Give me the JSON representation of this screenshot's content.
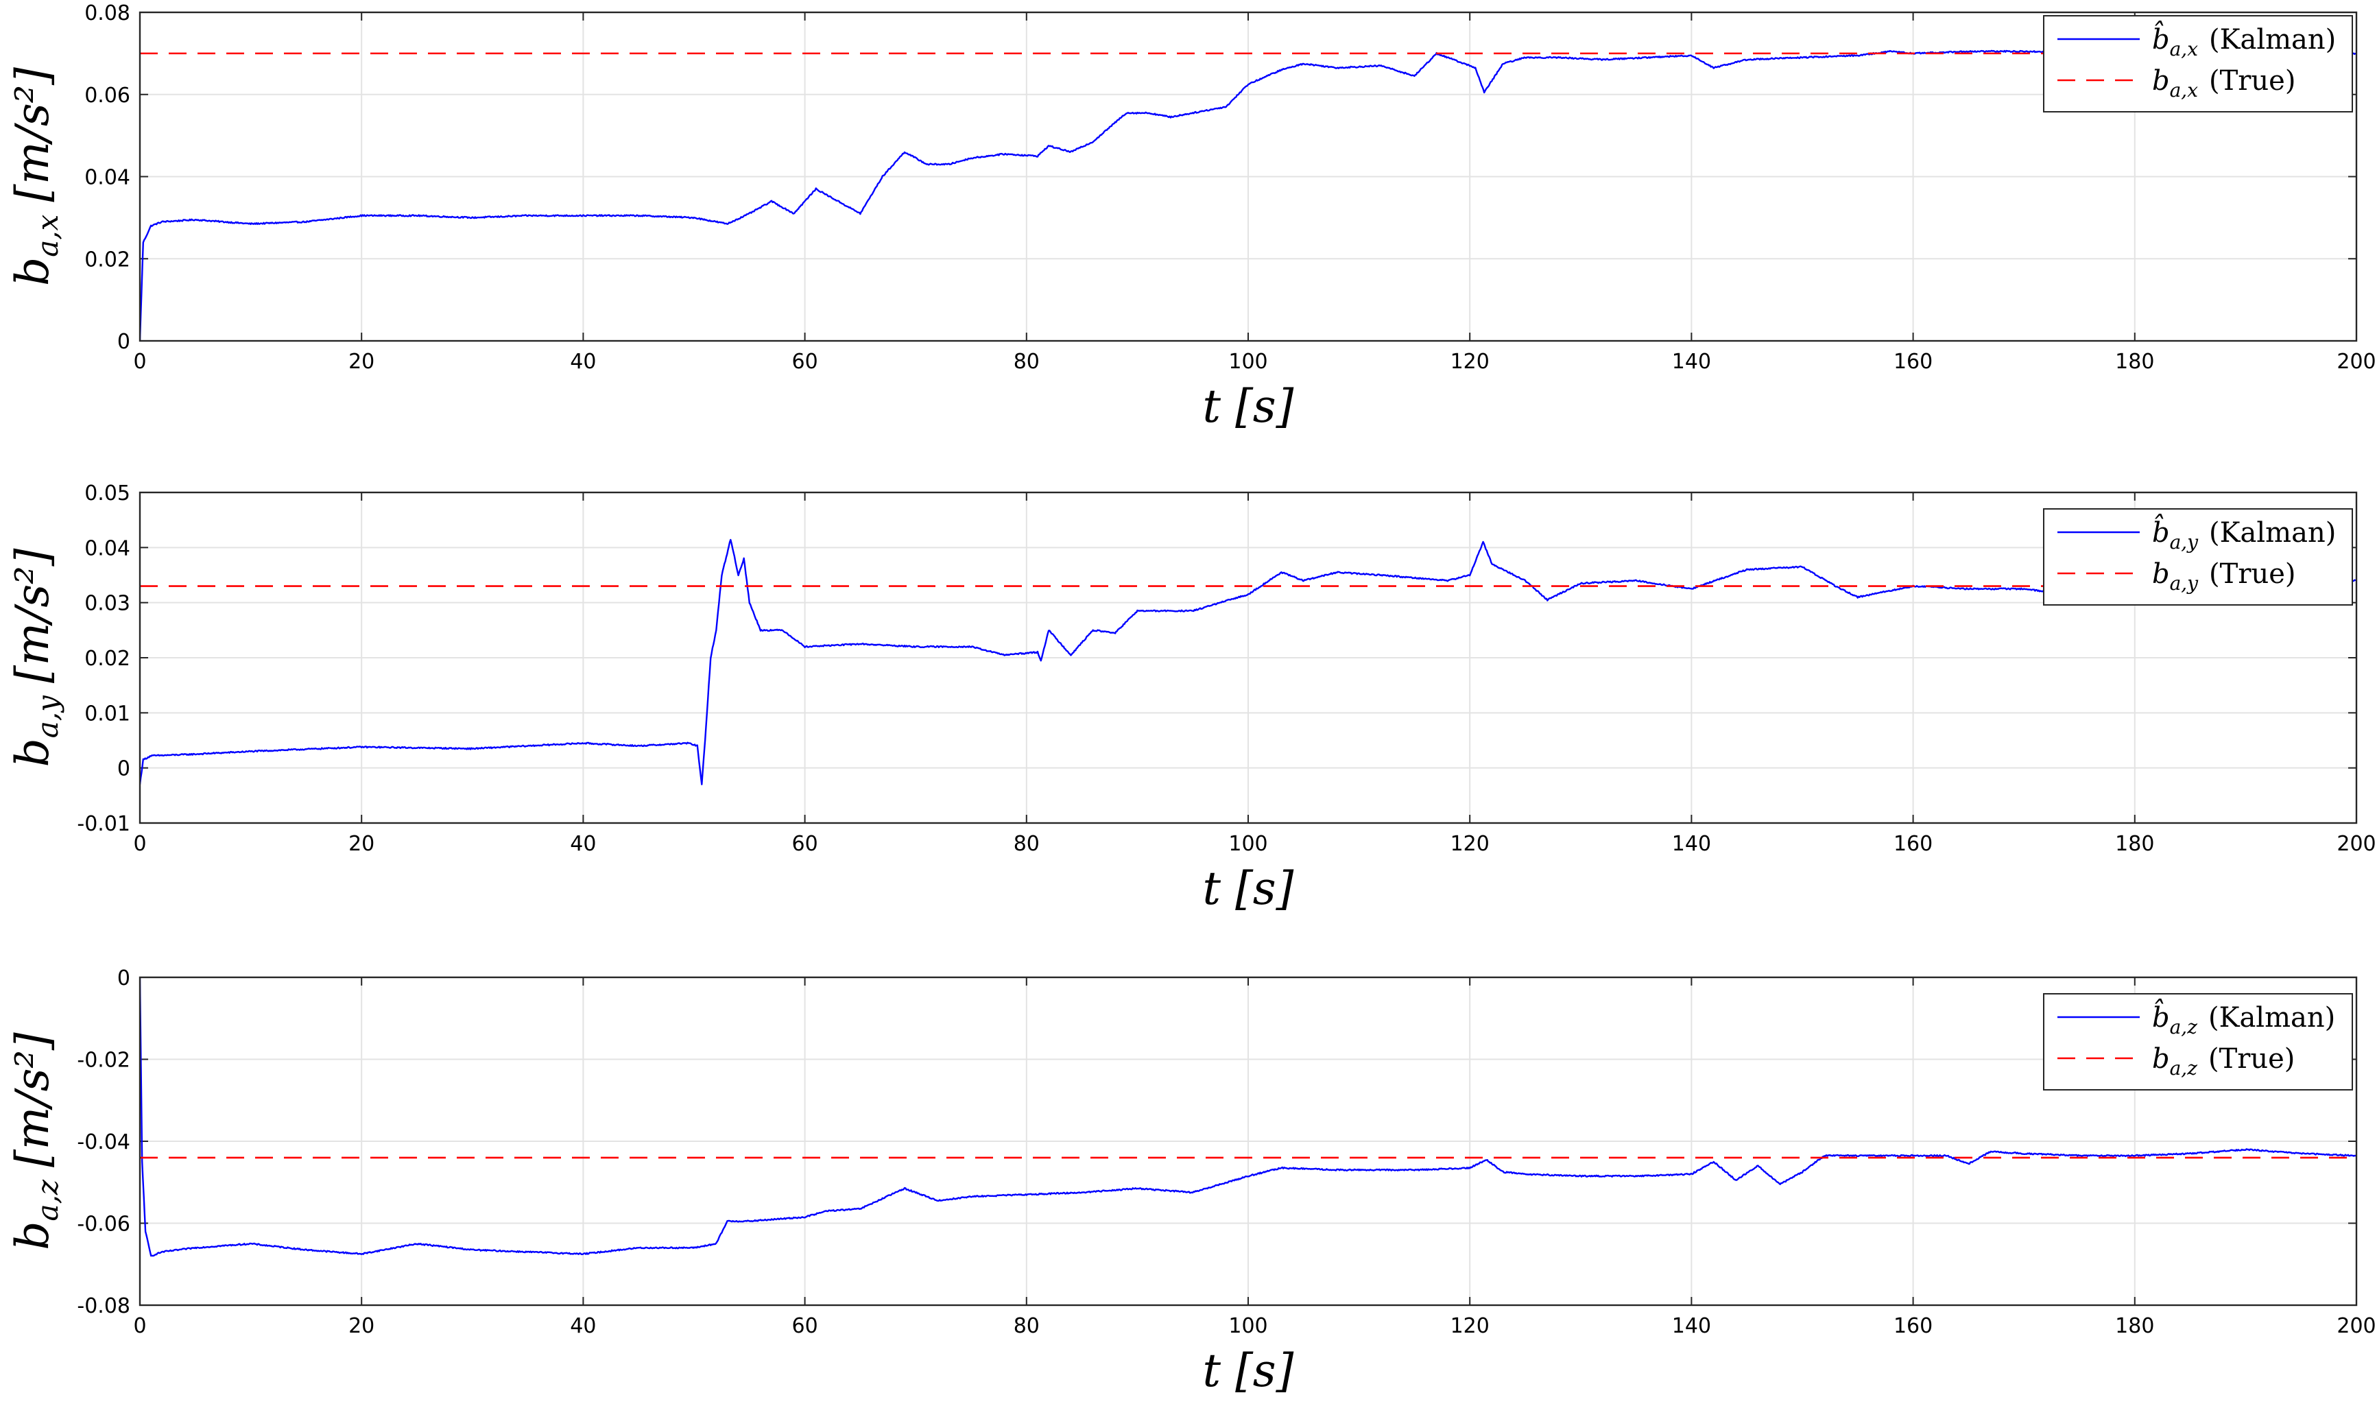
{
  "chart_data": [
    {
      "type": "line",
      "xlim": [
        0,
        200
      ],
      "ylim": [
        0,
        0.08
      ],
      "xticks": [
        "0",
        "20",
        "40",
        "60",
        "80",
        "100",
        "120",
        "140",
        "160",
        "180",
        "200"
      ],
      "yticks": [
        "0",
        "0.02",
        "0.04",
        "0.06",
        "0.08"
      ],
      "xlabel": "t [s]",
      "ylabel": "b_{a,x} [m/s^2]",
      "ylabel_sym": "b",
      "ylabel_sub": "a,x",
      "ylabel_unit": "[m/s²]",
      "grid": true,
      "legend_position": "top-right",
      "series": [
        {
          "name": "b̂_{a,x} (Kalman)",
          "legend_sym": "b̂",
          "legend_sub": "a,x",
          "legend_suffix": "(Kalman)",
          "color": "#0000ff",
          "style": "solid",
          "x": [
            0,
            0.3,
            1,
            2,
            5,
            10,
            15,
            20,
            25,
            30,
            35,
            40,
            45,
            50,
            53,
            55,
            57,
            59,
            61,
            63,
            65,
            67,
            69,
            71,
            73,
            75,
            78,
            81,
            82,
            84,
            86,
            89,
            91,
            93,
            95,
            98,
            100,
            103,
            105,
            108,
            112,
            115,
            117,
            119,
            120.5,
            121.3,
            123,
            125,
            128,
            132,
            136,
            140,
            142,
            145,
            150,
            155,
            158,
            160,
            165,
            170,
            180,
            190,
            200
          ],
          "y": [
            0,
            0.024,
            0.028,
            0.029,
            0.0295,
            0.0285,
            0.029,
            0.0305,
            0.0305,
            0.03,
            0.0305,
            0.0305,
            0.0305,
            0.03,
            0.0285,
            0.031,
            0.034,
            0.031,
            0.037,
            0.034,
            0.031,
            0.04,
            0.046,
            0.043,
            0.043,
            0.0445,
            0.0455,
            0.045,
            0.0475,
            0.046,
            0.0485,
            0.0555,
            0.0555,
            0.0545,
            0.0555,
            0.057,
            0.0625,
            0.066,
            0.0675,
            0.0665,
            0.067,
            0.0645,
            0.07,
            0.068,
            0.0665,
            0.0605,
            0.0675,
            0.069,
            0.069,
            0.0685,
            0.069,
            0.0695,
            0.0665,
            0.0685,
            0.069,
            0.0695,
            0.0705,
            0.07,
            0.0705,
            0.0705,
            0.07,
            0.0698,
            0.07
          ]
        },
        {
          "name": "b_{a,x} (True)",
          "legend_sym": "b",
          "legend_sub": "a,x",
          "legend_suffix": "(True)",
          "color": "#ff0000",
          "style": "dashed",
          "x": [
            0,
            200
          ],
          "y": [
            0.07,
            0.07
          ]
        }
      ]
    },
    {
      "type": "line",
      "xlim": [
        0,
        200
      ],
      "ylim": [
        -0.01,
        0.05
      ],
      "xticks": [
        "0",
        "20",
        "40",
        "60",
        "80",
        "100",
        "120",
        "140",
        "160",
        "180",
        "200"
      ],
      "yticks": [
        "-0.01",
        "0",
        "0.01",
        "0.02",
        "0.03",
        "0.04",
        "0.05"
      ],
      "xlabel": "t [s]",
      "ylabel": "b_{a,y} [m/s^2]",
      "ylabel_sym": "b",
      "ylabel_sub": "a,y",
      "ylabel_unit": "[m/s²]",
      "grid": true,
      "legend_position": "top-right",
      "series": [
        {
          "name": "b̂_{a,y} (Kalman)",
          "legend_sym": "b̂",
          "legend_sub": "a,y",
          "legend_suffix": "(Kalman)",
          "color": "#0000ff",
          "style": "solid",
          "x": [
            0,
            0.3,
            1,
            5,
            10,
            20,
            30,
            40,
            45,
            49.5,
            50.3,
            50.7,
            51,
            51.5,
            52,
            52.5,
            53.3,
            54,
            54.5,
            55,
            56,
            58,
            60,
            65,
            70,
            75,
            78,
            81,
            81.3,
            82,
            84,
            86,
            88,
            90,
            95,
            100,
            103,
            105,
            108,
            112,
            118,
            120,
            121.2,
            122,
            125,
            127,
            130,
            135,
            140,
            145,
            150,
            153,
            155,
            160,
            165,
            170,
            172,
            180,
            190,
            195,
            200
          ],
          "y": [
            -0.003,
            0.0015,
            0.0022,
            0.0025,
            0.003,
            0.0038,
            0.0035,
            0.0045,
            0.004,
            0.0045,
            0.004,
            -0.003,
            0.005,
            0.02,
            0.025,
            0.035,
            0.0415,
            0.035,
            0.038,
            0.03,
            0.025,
            0.025,
            0.022,
            0.0225,
            0.022,
            0.022,
            0.0205,
            0.021,
            0.0195,
            0.025,
            0.0205,
            0.025,
            0.0245,
            0.0285,
            0.0285,
            0.0315,
            0.0355,
            0.034,
            0.0355,
            0.035,
            0.034,
            0.035,
            0.041,
            0.037,
            0.034,
            0.0305,
            0.0335,
            0.034,
            0.0325,
            0.036,
            0.0365,
            0.033,
            0.031,
            0.033,
            0.0325,
            0.0325,
            0.032,
            0.0335,
            0.033,
            0.034,
            0.034
          ]
        },
        {
          "name": "b_{a,y} (True)",
          "legend_sym": "b",
          "legend_sub": "a,y",
          "legend_suffix": "(True)",
          "color": "#ff0000",
          "style": "dashed",
          "x": [
            0,
            200
          ],
          "y": [
            0.033,
            0.033
          ]
        }
      ]
    },
    {
      "type": "line",
      "xlim": [
        0,
        200
      ],
      "ylim": [
        -0.08,
        0
      ],
      "xticks": [
        "0",
        "20",
        "40",
        "60",
        "80",
        "100",
        "120",
        "140",
        "160",
        "180",
        "200"
      ],
      "yticks": [
        "-0.08",
        "-0.06",
        "-0.04",
        "-0.02",
        "0"
      ],
      "xlabel": "t [s]",
      "ylabel": "b_{a,z} [m/s^2]",
      "ylabel_sym": "b",
      "ylabel_sub": "a,z",
      "ylabel_unit": "[m/s²]",
      "grid": true,
      "legend_position": "top-right",
      "series": [
        {
          "name": "b̂_{a,z} (Kalman)",
          "legend_sym": "b̂",
          "legend_sub": "a,z",
          "legend_suffix": "(Kalman)",
          "color": "#0000ff",
          "style": "dashed-none",
          "x": [
            0,
            0.2,
            0.5,
            1,
            2,
            5,
            10,
            15,
            20,
            25,
            30,
            35,
            40,
            45,
            50,
            51,
            52,
            53,
            55,
            60,
            62,
            65,
            69,
            72,
            75,
            80,
            85,
            90,
            95,
            100,
            103,
            108,
            115,
            120,
            121.5,
            123,
            125,
            130,
            135,
            140,
            142,
            144,
            146,
            148,
            150,
            152,
            155,
            160,
            163,
            165,
            167,
            170,
            175,
            180,
            185,
            190,
            195,
            200
          ],
          "y": [
            0,
            -0.045,
            -0.062,
            -0.068,
            -0.067,
            -0.066,
            -0.065,
            -0.0665,
            -0.0675,
            -0.065,
            -0.0665,
            -0.067,
            -0.0675,
            -0.066,
            -0.066,
            -0.0655,
            -0.065,
            -0.0595,
            -0.0595,
            -0.0585,
            -0.057,
            -0.0565,
            -0.0515,
            -0.0545,
            -0.0535,
            -0.053,
            -0.0525,
            -0.0515,
            -0.0525,
            -0.0485,
            -0.0465,
            -0.047,
            -0.047,
            -0.0465,
            -0.0445,
            -0.0475,
            -0.048,
            -0.0485,
            -0.0485,
            -0.048,
            -0.045,
            -0.0495,
            -0.046,
            -0.0505,
            -0.0475,
            -0.0435,
            -0.0435,
            -0.0435,
            -0.0435,
            -0.0455,
            -0.0425,
            -0.043,
            -0.0435,
            -0.0435,
            -0.043,
            -0.042,
            -0.043,
            -0.0435
          ]
        },
        {
          "name": "b_{a,z} (True)",
          "legend_sym": "b",
          "legend_sub": "a,z",
          "legend_suffix": "(True)",
          "color": "#ff0000",
          "style": "dashed",
          "x": [
            0,
            200
          ],
          "y": [
            -0.044,
            -0.044
          ]
        }
      ]
    }
  ]
}
